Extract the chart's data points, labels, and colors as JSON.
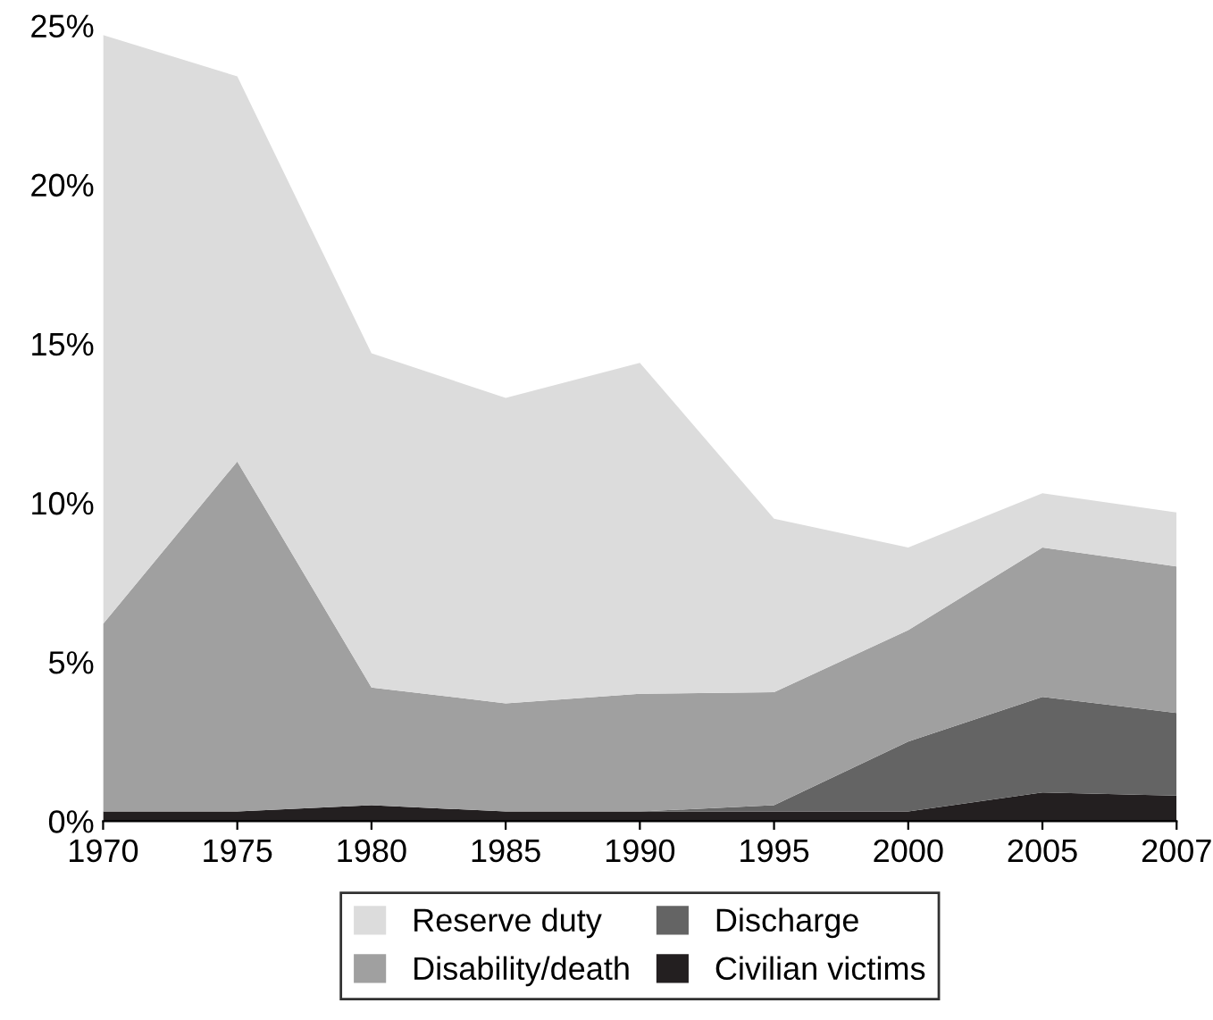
{
  "chart_data": {
    "type": "area",
    "stacked": true,
    "categories": [
      "1970",
      "1975",
      "1980",
      "1985",
      "1990",
      "1995",
      "2000",
      "2005",
      "2007"
    ],
    "series": [
      {
        "name": "Civilian victims",
        "color": "#231f20",
        "values": [
          0.3,
          0.3,
          0.5,
          0.3,
          0.3,
          0.3,
          0.3,
          0.9,
          0.8
        ]
      },
      {
        "name": "Discharge",
        "color": "#646464",
        "values": [
          0,
          0,
          0,
          0,
          0,
          0.2,
          2.2,
          3.0,
          2.6
        ]
      },
      {
        "name": "Disability/death",
        "color": "#a0a0a0",
        "values": [
          5.9,
          11.0,
          3.7,
          3.4,
          3.7,
          3.55,
          3.5,
          4.7,
          4.6
        ]
      },
      {
        "name": "Reserve duty",
        "color": "#dcdcdc",
        "values": [
          18.5,
          12.1,
          10.5,
          9.6,
          10.4,
          5.45,
          2.6,
          1.7,
          1.7
        ]
      }
    ],
    "ylim": [
      0,
      25
    ],
    "yticks": [
      {
        "value": 0,
        "label": "0%"
      },
      {
        "value": 5,
        "label": "5%"
      },
      {
        "value": 10,
        "label": "10%"
      },
      {
        "value": 15,
        "label": "15%"
      },
      {
        "value": 20,
        "label": "20%"
      },
      {
        "value": 25,
        "label": "25%"
      }
    ],
    "grid": false,
    "legend": "bottom"
  }
}
